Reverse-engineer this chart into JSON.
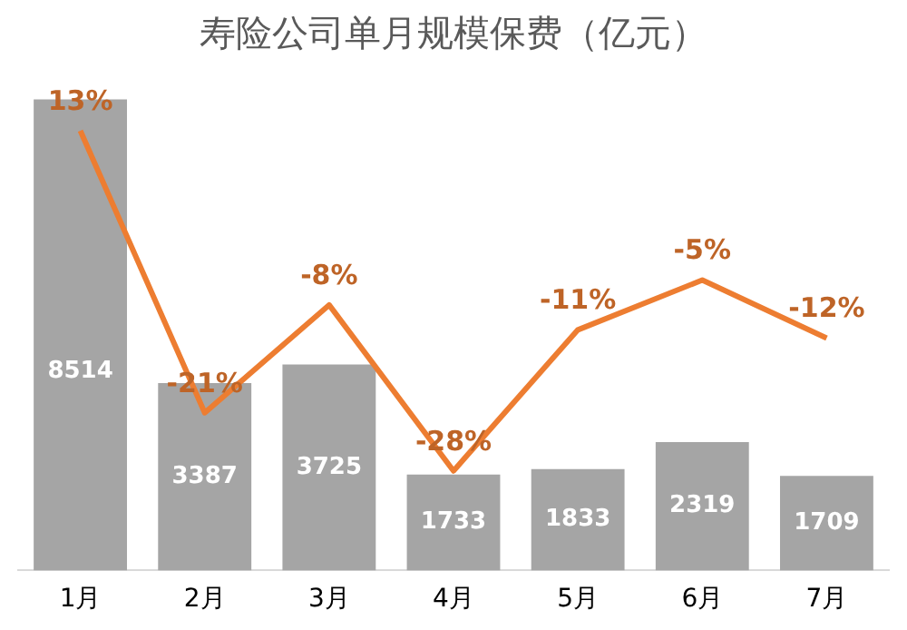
{
  "chart_data": {
    "type": "bar",
    "title": "寿险公司单月规模保费（亿元）",
    "categories": [
      "1月",
      "2月",
      "3月",
      "4月",
      "5月",
      "6月",
      "7月"
    ],
    "series": [
      {
        "color": "#a5a5a5",
        "values": [
          8514,
          3387,
          3725,
          1733,
          1833,
          2319,
          1709
        ]
      },
      {
        "type": "line",
        "axis": "y2",
        "color": "#ed7d31",
        "values": [
          13,
          -21,
          -8,
          -28,
          -11,
          -5,
          -12
        ],
        "value_labels": [
          "13%",
          "-21%",
          "-8%",
          "-28%",
          "-11%",
          "-5%",
          "-12%"
        ]
      }
    ],
    "tick_labels": "x",
    "data_labels": true,
    "grid": false,
    "legend": false,
    "marker": "none",
    "line_style": "solid"
  }
}
